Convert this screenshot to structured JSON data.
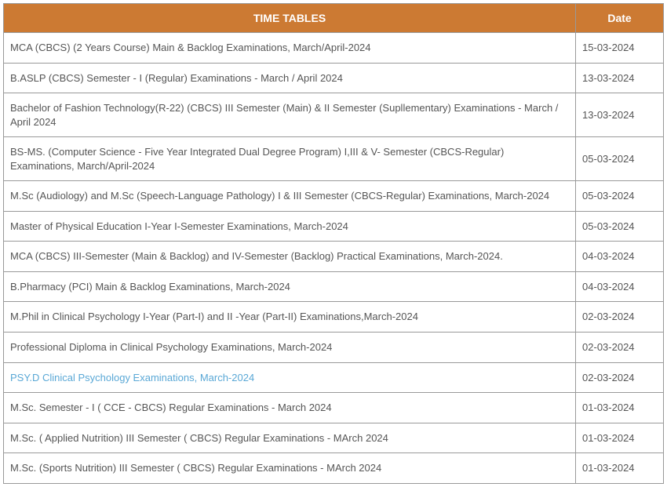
{
  "header": {
    "title_label": "TIME TABLES",
    "date_label": "Date",
    "bg_color": "#cc7a33",
    "text_color": "#ffffff"
  },
  "table": {
    "border_color": "#999999",
    "row_text_color": "#555555",
    "link_hover_color": "#5aa8d6",
    "font_size": 13
  },
  "rows": [
    {
      "title": "MCA (CBCS) (2 Years Course) Main & Backlog Examinations, March/April-2024",
      "date": "15-03-2024",
      "hovered": false
    },
    {
      "title": "B.ASLP (CBCS) Semester - I (Regular) Examinations - March / April 2024",
      "date": "13-03-2024",
      "hovered": false
    },
    {
      "title": "Bachelor of Fashion Technology(R-22) (CBCS) III Semester (Main) & II Semester (Supllementary) Examinations - March / April 2024",
      "date": "13-03-2024",
      "hovered": false
    },
    {
      "title": "BS-MS. (Computer Science - Five Year Integrated Dual Degree Program) I,III & V- Semester (CBCS-Regular) Examinations, March/April-2024",
      "date": "05-03-2024",
      "hovered": false
    },
    {
      "title": "M.Sc (Audiology) and M.Sc (Speech-Language Pathology) I & III Semester (CBCS-Regular) Examinations, March-2024",
      "date": "05-03-2024",
      "hovered": false
    },
    {
      "title": "Master of Physical Education I-Year I-Semester Examinations, March-2024",
      "date": "05-03-2024",
      "hovered": false
    },
    {
      "title": "MCA (CBCS) III-Semester (Main & Backlog) and IV-Semester (Backlog) Practical Examinations, March-2024.",
      "date": "04-03-2024",
      "hovered": false
    },
    {
      "title": "B.Pharmacy (PCI) Main & Backlog Examinations, March-2024",
      "date": "04-03-2024",
      "hovered": false
    },
    {
      "title": "M.Phil in Clinical Psychology I-Year (Part-I) and II -Year (Part-II) Examinations,March-2024",
      "date": "02-03-2024",
      "hovered": false
    },
    {
      "title": "Professional Diploma in Clinical Psychology Examinations, March-2024",
      "date": "02-03-2024",
      "hovered": false
    },
    {
      "title": "PSY.D Clinical Psychology Examinations, March-2024",
      "date": "02-03-2024",
      "hovered": true
    },
    {
      "title": "M.Sc. Semester - I ( CCE - CBCS) Regular Examinations - March 2024",
      "date": "01-03-2024",
      "hovered": false
    },
    {
      "title": "M.Sc. ( Applied Nutrition) III Semester ( CBCS) Regular Examinations - MArch 2024",
      "date": "01-03-2024",
      "hovered": false
    },
    {
      "title": "M.Sc. (Sports Nutrition) III Semester ( CBCS) Regular Examinations - MArch 2024",
      "date": "01-03-2024",
      "hovered": false
    }
  ]
}
